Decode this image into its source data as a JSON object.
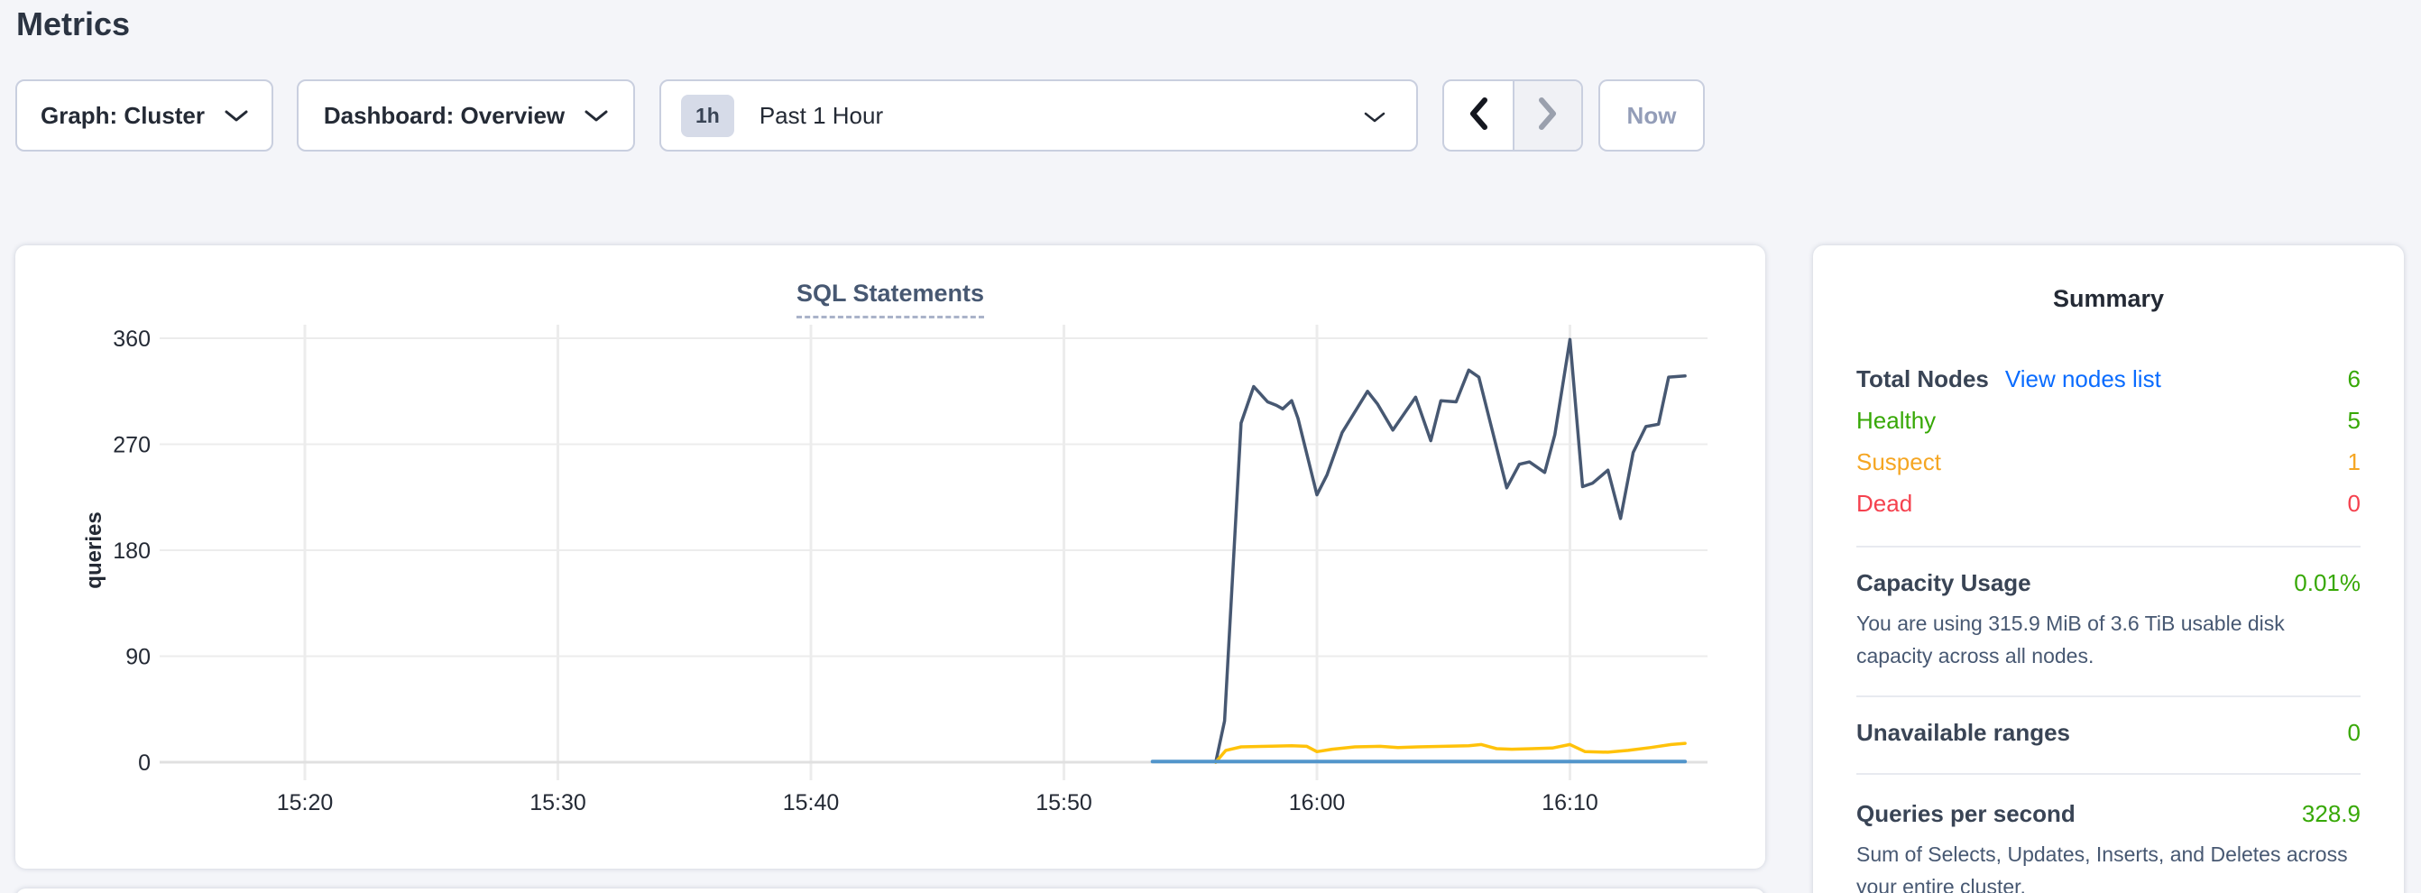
{
  "page": {
    "title": "Metrics"
  },
  "controls": {
    "graph_dropdown": {
      "label": "Graph: Cluster"
    },
    "dashboard_dropdown": {
      "label": "Dashboard: Overview"
    },
    "time_selector": {
      "badge": "1h",
      "label": "Past 1 Hour"
    },
    "now_button": {
      "label": "Now"
    }
  },
  "chart_data": {
    "type": "line",
    "title": "SQL Statements",
    "xlabel": "",
    "ylabel": "queries",
    "grid": true,
    "legend_position": "none",
    "ylim": [
      0,
      362
    ],
    "yticks": [
      0,
      90,
      180,
      270,
      360
    ],
    "x_unit": "minutes_after_15:00",
    "xlim": [
      14.4,
      75.4
    ],
    "xticks": [
      {
        "minute": 20,
        "label": "15:20"
      },
      {
        "minute": 30,
        "label": "15:30"
      },
      {
        "minute": 40,
        "label": "15:40"
      },
      {
        "minute": 50,
        "label": "15:50"
      },
      {
        "minute": 60,
        "label": "16:00"
      },
      {
        "minute": 70,
        "label": "16:10"
      }
    ],
    "series": [
      {
        "name": "navy-line",
        "color": "#475872",
        "points": [
          [
            56,
            0
          ],
          [
            56.35,
            35
          ],
          [
            57,
            288
          ],
          [
            57.5,
            319
          ],
          [
            58.05,
            306
          ],
          [
            58.4,
            303
          ],
          [
            58.65,
            300
          ],
          [
            59,
            307
          ],
          [
            59.25,
            292
          ],
          [
            60,
            227
          ],
          [
            60.4,
            244
          ],
          [
            61,
            280
          ],
          [
            62,
            315
          ],
          [
            62.4,
            304
          ],
          [
            63,
            282
          ],
          [
            63.9,
            310
          ],
          [
            64.5,
            273
          ],
          [
            64.9,
            307
          ],
          [
            65.5,
            306
          ],
          [
            66,
            333
          ],
          [
            66.4,
            327
          ],
          [
            67.5,
            233
          ],
          [
            68,
            253
          ],
          [
            68.4,
            255
          ],
          [
            69,
            246
          ],
          [
            69.4,
            278
          ],
          [
            70,
            359
          ],
          [
            70.5,
            234
          ],
          [
            70.9,
            237
          ],
          [
            71.5,
            248
          ],
          [
            72,
            207
          ],
          [
            72.5,
            263
          ],
          [
            73,
            285
          ],
          [
            73.5,
            287
          ],
          [
            73.9,
            327
          ],
          [
            74.55,
            328
          ]
        ]
      },
      {
        "name": "yellow-line",
        "color": "#ffc20a",
        "points": [
          [
            56,
            0
          ],
          [
            56.4,
            10
          ],
          [
            57,
            13
          ],
          [
            58,
            13.5
          ],
          [
            59,
            14
          ],
          [
            59.6,
            13.5
          ],
          [
            60,
            9
          ],
          [
            60.6,
            11
          ],
          [
            61.5,
            13
          ],
          [
            62.5,
            13.5
          ],
          [
            63.2,
            12.5
          ],
          [
            64,
            13
          ],
          [
            65,
            13.5
          ],
          [
            66,
            14
          ],
          [
            66.5,
            15
          ],
          [
            67.1,
            11.5
          ],
          [
            67.7,
            11
          ],
          [
            68.5,
            11.5
          ],
          [
            69.3,
            12
          ],
          [
            70,
            15
          ],
          [
            70.6,
            9
          ],
          [
            71.5,
            8.5
          ],
          [
            72.3,
            10
          ],
          [
            73.2,
            12.5
          ],
          [
            74,
            15
          ],
          [
            74.55,
            16
          ]
        ]
      },
      {
        "name": "blue-line",
        "color": "#5295cb",
        "points": [
          [
            53.5,
            0.5
          ],
          [
            74.55,
            0.5
          ]
        ]
      }
    ]
  },
  "summary": {
    "title": "Summary",
    "total_nodes": {
      "label": "Total Nodes",
      "link": "View nodes list",
      "value": "6"
    },
    "healthy": {
      "label": "Healthy",
      "value": "5"
    },
    "suspect": {
      "label": "Suspect",
      "value": "1"
    },
    "dead": {
      "label": "Dead",
      "value": "0"
    },
    "capacity": {
      "label": "Capacity Usage",
      "value": "0.01%",
      "description": "You are using 315.9 MiB of 3.6 TiB usable disk capacity across all nodes."
    },
    "unavailable_ranges": {
      "label": "Unavailable ranges",
      "value": "0"
    },
    "queries_per_second": {
      "label": "Queries per second",
      "value": "328.9",
      "description": "Sum of Selects, Updates, Inserts, and Deletes across your entire cluster."
    }
  },
  "colors": {
    "background": "#f4f5f9",
    "text_dark": "#242a35",
    "slate": "#475872",
    "green": "#37a806",
    "orange": "#f5a623",
    "red": "#f5414e",
    "link_blue": "#0a6cff",
    "line_navy": "#475872",
    "line_yellow": "#ffc20a",
    "line_blue": "#5295cb"
  }
}
